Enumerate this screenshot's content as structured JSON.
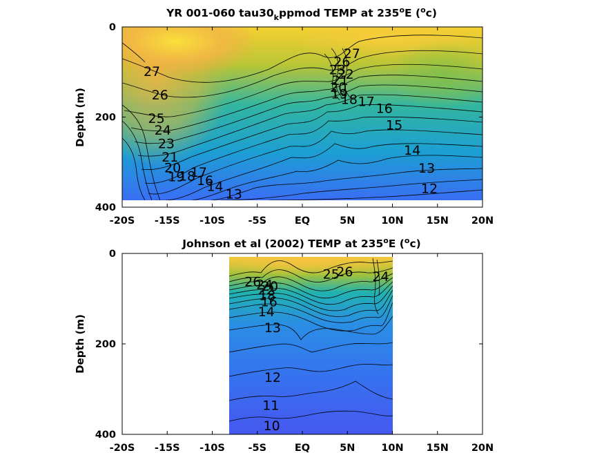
{
  "chart_data": [
    {
      "type": "contour",
      "title": {
        "pre": "YR 001-060 tau30",
        "sub": "k",
        "mid": "ppmod TEMP at 235",
        "sup1": "o",
        "e": "E (",
        "sup2": "o",
        "c": "c)"
      },
      "ylabel": "Depth (m)",
      "xlim": [
        -20,
        20
      ],
      "ylim": [
        0,
        400
      ],
      "y_reversed": true,
      "data_extent": {
        "x": [
          -20,
          20
        ],
        "depth": [
          0,
          385
        ]
      },
      "x_ticks": [
        {
          "v": -20,
          "label": "-20S"
        },
        {
          "v": -15,
          "label": "-15S"
        },
        {
          "v": -10,
          "label": "-10S"
        },
        {
          "v": -5,
          "label": "-5S"
        },
        {
          "v": 0,
          "label": "EQ"
        },
        {
          "v": 5,
          "label": "5N"
        },
        {
          "v": 10,
          "label": "10N"
        },
        {
          "v": 15,
          "label": "15N"
        },
        {
          "v": 20,
          "label": "20N"
        }
      ],
      "y_ticks": [
        {
          "v": 0,
          "label": "0"
        },
        {
          "v": 200,
          "label": "200"
        },
        {
          "v": 400,
          "label": "400"
        }
      ],
      "contour_labels": [
        {
          "text": "27",
          "x": -16.7,
          "depth": 98
        },
        {
          "text": "26",
          "x": -15.8,
          "depth": 150
        },
        {
          "text": "25",
          "x": -16.2,
          "depth": 202
        },
        {
          "text": "24",
          "x": -15.5,
          "depth": 228
        },
        {
          "text": "23",
          "x": -15.1,
          "depth": 258
        },
        {
          "text": "21",
          "x": -14.7,
          "depth": 288
        },
        {
          "text": "20",
          "x": -14.4,
          "depth": 312
        },
        {
          "text": "19",
          "x": -14.0,
          "depth": 332
        },
        {
          "text": "18",
          "x": -12.8,
          "depth": 330
        },
        {
          "text": "17",
          "x": -11.5,
          "depth": 322
        },
        {
          "text": "16",
          "x": -10.8,
          "depth": 340
        },
        {
          "text": "14",
          "x": -9.7,
          "depth": 353
        },
        {
          "text": "13",
          "x": -7.6,
          "depth": 370
        },
        {
          "text": "27",
          "x": 5.5,
          "depth": 58
        },
        {
          "text": "26",
          "x": 4.4,
          "depth": 77
        },
        {
          "text": "23",
          "x": 3.9,
          "depth": 94
        },
        {
          "text": "22",
          "x": 4.8,
          "depth": 104
        },
        {
          "text": "21",
          "x": 4.2,
          "depth": 118
        },
        {
          "text": "20",
          "x": 4.0,
          "depth": 133
        },
        {
          "text": "19",
          "x": 4.1,
          "depth": 148
        },
        {
          "text": "18",
          "x": 5.2,
          "depth": 160
        },
        {
          "text": "17",
          "x": 7.1,
          "depth": 165
        },
        {
          "text": "16",
          "x": 9.1,
          "depth": 180
        },
        {
          "text": "15",
          "x": 10.2,
          "depth": 217
        },
        {
          "text": "14",
          "x": 12.2,
          "depth": 273
        },
        {
          "text": "13",
          "x": 13.8,
          "depth": 313
        },
        {
          "text": "12",
          "x": 14.1,
          "depth": 358
        }
      ]
    },
    {
      "type": "contour",
      "title": {
        "pre": "Johnson et al (2002) TEMP at 235",
        "sup1": "o",
        "e": "E (",
        "sup2": "o",
        "c": "c)"
      },
      "ylabel": "Depth (m)",
      "xlim": [
        -20,
        20
      ],
      "ylim": [
        0,
        400
      ],
      "y_reversed": true,
      "data_extent": {
        "x": [
          -8,
          10
        ],
        "depth": [
          8,
          400
        ]
      },
      "x_ticks": [
        {
          "v": -20,
          "label": "-20S"
        },
        {
          "v": -15,
          "label": "-15S"
        },
        {
          "v": -10,
          "label": "-10S"
        },
        {
          "v": -5,
          "label": "-5S"
        },
        {
          "v": 0,
          "label": "EQ"
        },
        {
          "v": 5,
          "label": "5N"
        },
        {
          "v": 10,
          "label": "10N"
        },
        {
          "v": 15,
          "label": "15N"
        },
        {
          "v": 20,
          "label": "20N"
        }
      ],
      "y_ticks": [
        {
          "v": 0,
          "label": "0"
        },
        {
          "v": 200,
          "label": "200"
        },
        {
          "v": 400,
          "label": "400"
        }
      ],
      "contour_labels": [
        {
          "text": "26",
          "x": -5.5,
          "depth": 62
        },
        {
          "text": "24",
          "x": -4.2,
          "depth": 68
        },
        {
          "text": "20",
          "x": -3.6,
          "depth": 72
        },
        {
          "text": "22",
          "x": -4.0,
          "depth": 80
        },
        {
          "text": "18",
          "x": -3.9,
          "depth": 92
        },
        {
          "text": "16",
          "x": -3.7,
          "depth": 106
        },
        {
          "text": "14",
          "x": -4.0,
          "depth": 128
        },
        {
          "text": "13",
          "x": -3.3,
          "depth": 163
        },
        {
          "text": "25",
          "x": 3.2,
          "depth": 45
        },
        {
          "text": "26",
          "x": 4.7,
          "depth": 40
        },
        {
          "text": "24",
          "x": 8.7,
          "depth": 50
        },
        {
          "text": "12",
          "x": -3.3,
          "depth": 273
        },
        {
          "text": "11",
          "x": -3.5,
          "depth": 335
        },
        {
          "text": "10",
          "x": -3.4,
          "depth": 380
        }
      ]
    }
  ]
}
